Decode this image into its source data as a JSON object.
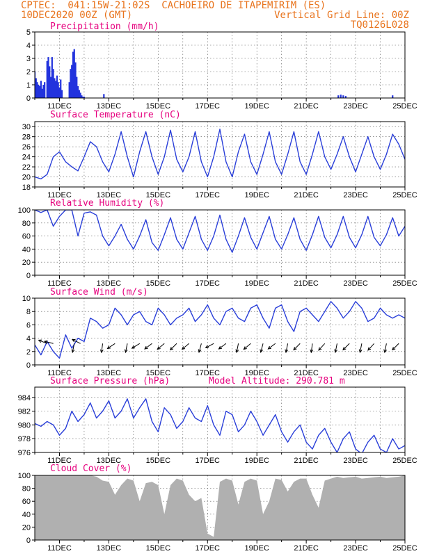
{
  "header": {
    "line1_left": "CPTEC:  041:15W-21:02S  CACHOEIRO DE ITAPEMIRIM (ES)",
    "line2_left": "10DEC2020 00Z (GMT)",
    "line2_right": "Vertical Grid Line: 00Z",
    "line3_right": "TQ0126L028"
  },
  "colors": {
    "line": "#2a3fd9",
    "bar": "#2233dd",
    "cloud": "#b0b0b0",
    "arrow": "#000000",
    "title": "#e6007e",
    "header": "#e8731c"
  },
  "x_axis": {
    "labels": [
      "11DEC",
      "13DEC",
      "15DEC",
      "17DEC",
      "19DEC",
      "21DEC",
      "23DEC",
      "25DEC"
    ]
  },
  "chart_data": [
    {
      "type": "bar",
      "title": "Precipitation (mm/h)",
      "ylim": [
        0,
        5
      ],
      "yticks": [
        0,
        1,
        2,
        3,
        4,
        5
      ],
      "x": [
        10.0,
        10.05,
        10.1,
        10.15,
        10.2,
        10.25,
        10.3,
        10.35,
        10.4,
        10.5,
        10.55,
        10.6,
        10.65,
        10.7,
        10.75,
        10.8,
        10.85,
        10.9,
        10.95,
        11.0,
        11.05,
        11.1,
        11.4,
        11.45,
        11.5,
        11.55,
        11.6,
        11.65,
        11.7,
        11.75,
        11.8,
        11.85,
        11.9,
        11.95,
        12.0,
        12.8,
        22.3,
        22.4,
        22.5,
        22.6,
        24.5
      ],
      "values": [
        2.0,
        1.5,
        1.2,
        1.0,
        0.9,
        1.3,
        0.7,
        1.0,
        1.2,
        2.8,
        3.1,
        2.4,
        1.6,
        3.1,
        2.2,
        1.5,
        1.3,
        1.7,
        1.2,
        0.8,
        1.4,
        0.6,
        1.2,
        2.2,
        2.5,
        3.5,
        3.7,
        2.7,
        1.6,
        0.9,
        0.6,
        0.4,
        0.2,
        0.1,
        0.1,
        0.3,
        0.2,
        0.25,
        0.2,
        0.15,
        0.2
      ]
    },
    {
      "type": "line",
      "title": "Surface Temperature (nC)",
      "ylim": [
        18,
        31
      ],
      "yticks": [
        18,
        20,
        22,
        24,
        26,
        28,
        30
      ],
      "x": [
        10.0,
        10.25,
        10.5,
        10.75,
        11.0,
        11.25,
        11.5,
        11.75,
        12.0,
        12.25,
        12.5,
        12.75,
        13.0,
        13.25,
        13.5,
        13.75,
        14.0,
        14.25,
        14.5,
        14.75,
        15.0,
        15.25,
        15.5,
        15.75,
        16.0,
        16.25,
        16.5,
        16.75,
        17.0,
        17.25,
        17.5,
        17.75,
        18.0,
        18.25,
        18.5,
        18.75,
        19.0,
        19.25,
        19.5,
        19.75,
        20.0,
        20.25,
        20.5,
        20.75,
        21.0,
        21.25,
        21.5,
        21.75,
        22.0,
        22.25,
        22.5,
        22.75,
        23.0,
        23.25,
        23.5,
        23.75,
        24.0,
        24.25,
        24.5,
        24.75,
        25.0
      ],
      "series": [
        {
          "values": [
            20.0,
            19.6,
            20.5,
            24.0,
            25.0,
            23.0,
            22.0,
            21.2,
            24.0,
            27.0,
            26.0,
            23.0,
            21.0,
            24.5,
            29.0,
            24.0,
            20.0,
            25.0,
            29.0,
            24.0,
            20.5,
            24.0,
            29.3,
            23.5,
            21.0,
            24.0,
            29.0,
            23.0,
            20.0,
            24.0,
            29.5,
            23.0,
            20.0,
            25.0,
            28.5,
            23.0,
            20.5,
            24.5,
            29.0,
            23.0,
            20.5,
            24.5,
            29.0,
            23.0,
            20.5,
            24.5,
            29.0,
            24.0,
            21.5,
            24.5,
            28.0,
            24.0,
            21.0,
            24.5,
            28.0,
            24.0,
            21.5,
            24.5,
            28.5,
            26.5,
            23.5
          ]
        }
      ]
    },
    {
      "type": "line",
      "title": "Relative Humidity (%)",
      "ylim": [
        0,
        100
      ],
      "yticks": [
        0,
        20,
        40,
        60,
        80,
        100
      ],
      "x": [
        10.0,
        10.25,
        10.5,
        10.75,
        11.0,
        11.25,
        11.5,
        11.75,
        12.0,
        12.25,
        12.5,
        12.75,
        13.0,
        13.25,
        13.5,
        13.75,
        14.0,
        14.25,
        14.5,
        14.75,
        15.0,
        15.25,
        15.5,
        15.75,
        16.0,
        16.25,
        16.5,
        16.75,
        17.0,
        17.25,
        17.5,
        17.75,
        18.0,
        18.25,
        18.5,
        18.75,
        19.0,
        19.25,
        19.5,
        19.75,
        20.0,
        20.25,
        20.5,
        20.75,
        21.0,
        21.25,
        21.5,
        21.75,
        22.0,
        22.25,
        22.5,
        22.75,
        23.0,
        23.25,
        23.5,
        23.75,
        24.0,
        24.25,
        24.5,
        24.75,
        25.0
      ],
      "series": [
        {
          "values": [
            100,
            96,
            100,
            75,
            90,
            100,
            100,
            60,
            95,
            97,
            92,
            60,
            45,
            60,
            78,
            55,
            40,
            60,
            85,
            50,
            38,
            62,
            88,
            55,
            40,
            65,
            90,
            55,
            38,
            60,
            92,
            55,
            35,
            60,
            88,
            58,
            40,
            65,
            90,
            55,
            40,
            62,
            88,
            55,
            38,
            62,
            90,
            58,
            42,
            62,
            90,
            58,
            42,
            62,
            90,
            58,
            45,
            62,
            88,
            60,
            75
          ]
        }
      ]
    },
    {
      "type": "line",
      "title": "Surface Wind (m/s)",
      "ylim": [
        0,
        10
      ],
      "yticks": [
        0,
        2,
        4,
        6,
        8,
        10
      ],
      "x": [
        10.0,
        10.25,
        10.5,
        10.75,
        11.0,
        11.25,
        11.5,
        11.75,
        12.0,
        12.25,
        12.5,
        12.75,
        13.0,
        13.25,
        13.5,
        13.75,
        14.0,
        14.25,
        14.5,
        14.75,
        15.0,
        15.25,
        15.5,
        15.75,
        16.0,
        16.25,
        16.5,
        16.75,
        17.0,
        17.25,
        17.5,
        17.75,
        18.0,
        18.25,
        18.5,
        18.75,
        19.0,
        19.25,
        19.5,
        19.75,
        20.0,
        20.25,
        20.5,
        20.75,
        21.0,
        21.25,
        21.5,
        21.75,
        22.0,
        22.25,
        22.5,
        22.75,
        23.0,
        23.25,
        23.5,
        23.75,
        24.0,
        24.25,
        24.5,
        24.75,
        25.0
      ],
      "series": [
        {
          "values": [
            3.0,
            1.5,
            3.5,
            2.0,
            1.0,
            4.5,
            2.5,
            4.0,
            3.5,
            7.0,
            6.5,
            5.5,
            6.0,
            8.5,
            7.5,
            6.0,
            7.5,
            8.0,
            6.5,
            6.0,
            8.5,
            7.5,
            6.0,
            7.0,
            7.5,
            8.5,
            6.5,
            7.5,
            9.0,
            7.0,
            6.0,
            8.0,
            8.5,
            7.0,
            6.5,
            8.5,
            9.0,
            7.0,
            5.5,
            8.5,
            9.0,
            6.5,
            5.0,
            8.0,
            8.5,
            7.5,
            6.5,
            8.0,
            9.5,
            8.5,
            7.0,
            8.0,
            9.5,
            8.5,
            6.5,
            7.0,
            8.5,
            7.5,
            7.0,
            7.5,
            7.0
          ]
        }
      ],
      "wind_arrows": [
        {
          "x": 10.5,
          "u": -1.0,
          "v": 0.4
        },
        {
          "x": 10.75,
          "u": -1.2,
          "v": 0.3
        },
        {
          "x": 11.6,
          "u": -0.3,
          "v": -1.5
        },
        {
          "x": 11.85,
          "u": -1.0,
          "v": 0.5
        },
        {
          "x": 12.75,
          "u": -0.2,
          "v": -1.5
        },
        {
          "x": 13.25,
          "u": -1.2,
          "v": -0.8
        },
        {
          "x": 13.75,
          "u": -0.3,
          "v": -1.5
        },
        {
          "x": 14.25,
          "u": -1.3,
          "v": -0.8
        },
        {
          "x": 14.75,
          "u": -1.2,
          "v": -0.9
        },
        {
          "x": 15.25,
          "u": -1.2,
          "v": -1.0
        },
        {
          "x": 15.75,
          "u": -1.1,
          "v": -1.1
        },
        {
          "x": 16.25,
          "u": -1.2,
          "v": -1.0
        },
        {
          "x": 16.75,
          "u": -0.4,
          "v": -1.5
        },
        {
          "x": 17.25,
          "u": -1.3,
          "v": -0.7
        },
        {
          "x": 17.75,
          "u": -1.2,
          "v": -0.9
        },
        {
          "x": 18.25,
          "u": -0.3,
          "v": -1.5
        },
        {
          "x": 18.75,
          "u": -1.2,
          "v": -1.0
        },
        {
          "x": 19.25,
          "u": -0.4,
          "v": -1.5
        },
        {
          "x": 19.75,
          "u": -1.2,
          "v": -0.9
        },
        {
          "x": 20.25,
          "u": -0.3,
          "v": -1.5
        },
        {
          "x": 20.75,
          "u": -1.1,
          "v": -1.1
        },
        {
          "x": 21.25,
          "u": -0.2,
          "v": -1.5
        },
        {
          "x": 21.75,
          "u": -1.0,
          "v": -1.1
        },
        {
          "x": 22.25,
          "u": -0.3,
          "v": -1.5
        },
        {
          "x": 22.75,
          "u": -1.1,
          "v": -1.1
        },
        {
          "x": 23.25,
          "u": -0.3,
          "v": -1.5
        },
        {
          "x": 23.75,
          "u": -1.0,
          "v": -1.1
        },
        {
          "x": 24.25,
          "u": -0.3,
          "v": -1.5
        },
        {
          "x": 24.75,
          "u": -1.1,
          "v": -1.1
        }
      ]
    },
    {
      "type": "line",
      "title": "Surface Pressure (hPa)",
      "annotation": "Model Altitude: 290.781 m",
      "ylim": [
        976,
        985.5
      ],
      "yticks": [
        976,
        978,
        980,
        982,
        984
      ],
      "x": [
        10.0,
        10.25,
        10.5,
        10.75,
        11.0,
        11.25,
        11.5,
        11.75,
        12.0,
        12.25,
        12.5,
        12.75,
        13.0,
        13.25,
        13.5,
        13.75,
        14.0,
        14.25,
        14.5,
        14.75,
        15.0,
        15.25,
        15.5,
        15.75,
        16.0,
        16.25,
        16.5,
        16.75,
        17.0,
        17.25,
        17.5,
        17.75,
        18.0,
        18.25,
        18.5,
        18.75,
        19.0,
        19.25,
        19.5,
        19.75,
        20.0,
        20.25,
        20.5,
        20.75,
        21.0,
        21.25,
        21.5,
        21.75,
        22.0,
        22.25,
        22.5,
        22.75,
        23.0,
        23.25,
        23.5,
        23.75,
        24.0,
        24.25,
        24.5,
        24.75,
        25.0
      ],
      "series": [
        {
          "values": [
            980.2,
            979.8,
            980.5,
            980.0,
            978.5,
            979.5,
            982.0,
            980.5,
            981.5,
            983.2,
            981.0,
            982.0,
            983.5,
            981.0,
            982.0,
            983.8,
            981.0,
            982.5,
            983.8,
            980.5,
            979.0,
            982.5,
            981.5,
            979.5,
            980.5,
            982.5,
            981.0,
            980.5,
            982.8,
            980.0,
            978.5,
            982.0,
            981.5,
            979.0,
            980.0,
            982.0,
            980.5,
            978.5,
            980.0,
            981.5,
            979.0,
            977.5,
            979.0,
            980.0,
            977.5,
            976.5,
            978.5,
            979.5,
            977.5,
            976.0,
            978.0,
            979.0,
            976.5,
            975.8,
            977.5,
            978.5,
            976.5,
            976.0,
            978.0,
            976.5,
            977.0
          ]
        }
      ]
    },
    {
      "type": "area",
      "title": "Cloud Cover (%)",
      "ylim": [
        0,
        100
      ],
      "yticks": [
        0,
        20,
        40,
        60,
        80,
        100
      ],
      "x": [
        10.0,
        10.25,
        10.5,
        10.75,
        11.0,
        11.25,
        11.5,
        11.75,
        12.0,
        12.25,
        12.5,
        12.75,
        13.0,
        13.25,
        13.5,
        13.75,
        14.0,
        14.25,
        14.5,
        14.75,
        15.0,
        15.25,
        15.5,
        15.75,
        16.0,
        16.25,
        16.5,
        16.75,
        17.0,
        17.25,
        17.5,
        17.75,
        18.0,
        18.25,
        18.5,
        18.75,
        19.0,
        19.25,
        19.5,
        19.75,
        20.0,
        20.25,
        20.5,
        20.75,
        21.0,
        21.25,
        21.5,
        21.75,
        22.0,
        22.25,
        22.5,
        22.75,
        23.0,
        23.25,
        23.5,
        23.75,
        24.0,
        24.25,
        24.5,
        24.75,
        25.0
      ],
      "series": [
        {
          "values": [
            100,
            100,
            100,
            100,
            100,
            100,
            100,
            100,
            100,
            100,
            98,
            92,
            90,
            70,
            85,
            95,
            92,
            60,
            88,
            90,
            85,
            40,
            85,
            95,
            92,
            70,
            60,
            65,
            10,
            5,
            90,
            95,
            92,
            55,
            90,
            95,
            92,
            40,
            60,
            95,
            93,
            75,
            90,
            95,
            95,
            70,
            50,
            92,
            95,
            98,
            96,
            97,
            98,
            95,
            96,
            97,
            98,
            96,
            97,
            98,
            100
          ]
        }
      ]
    }
  ]
}
